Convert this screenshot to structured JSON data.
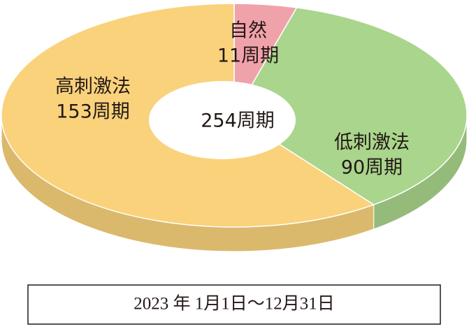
{
  "chart_data": {
    "type": "pie",
    "donut": true,
    "categories": [
      "自然",
      "低刺激法",
      "高刺激法"
    ],
    "values": [
      11,
      90,
      153
    ],
    "value_labels": [
      "11周期",
      "90周期",
      "153周期"
    ],
    "colors": [
      "#f0a2aa",
      "#a9d58c",
      "#f9d27b"
    ],
    "center_label": "254周期",
    "caption": "2023 年 1月1日～12月31日"
  }
}
